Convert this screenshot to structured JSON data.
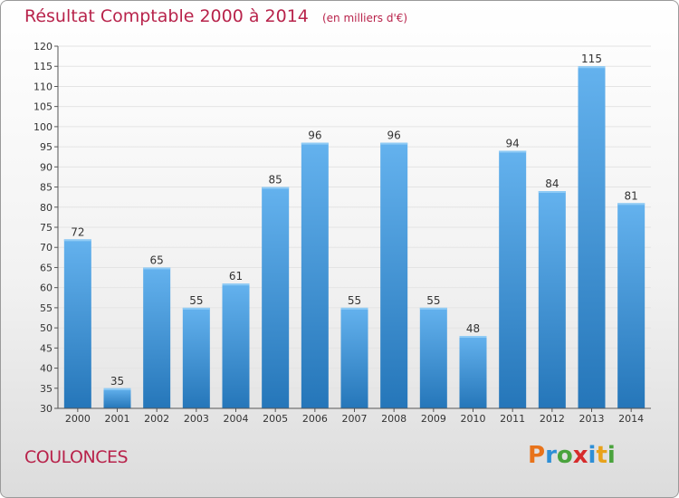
{
  "header": {
    "title": "Résultat Comptable 2000 à 2014",
    "subtitle": "(en milliers d'€)"
  },
  "footer": {
    "commune": "COULONCES",
    "brand": "Proxiti",
    "brand_letters": [
      "P",
      "r",
      "o",
      "x",
      "i",
      "t",
      "i"
    ],
    "brand_colors": [
      "#e8731b",
      "#2e8fd6",
      "#4aa33d",
      "#d62b2b",
      "#2e8fd6",
      "#e8a21b",
      "#4aa33d"
    ]
  },
  "colors": {
    "bar": "#3b94da",
    "bar_light": "#6ab5ee",
    "grid": "#e4e4e4",
    "axis": "#555555",
    "text": "#333333"
  },
  "chart_data": {
    "type": "bar",
    "categories": [
      "2000",
      "2001",
      "2002",
      "2003",
      "2004",
      "2005",
      "2006",
      "2007",
      "2008",
      "2009",
      "2010",
      "2011",
      "2012",
      "2013",
      "2014"
    ],
    "values": [
      72,
      35,
      65,
      55,
      61,
      85,
      96,
      55,
      96,
      55,
      48,
      94,
      84,
      115,
      81
    ],
    "data_labels": [
      "72",
      "35",
      "65",
      "55",
      "61",
      "85",
      "96",
      "55",
      "96",
      "55",
      "48",
      "94",
      "84",
      "115",
      "81"
    ],
    "ylim": [
      30,
      120
    ],
    "yticks": [
      30,
      35,
      40,
      45,
      50,
      55,
      60,
      65,
      70,
      75,
      80,
      85,
      90,
      95,
      100,
      105,
      110,
      115,
      120
    ],
    "grid": true,
    "xlabel": "",
    "ylabel": ""
  }
}
